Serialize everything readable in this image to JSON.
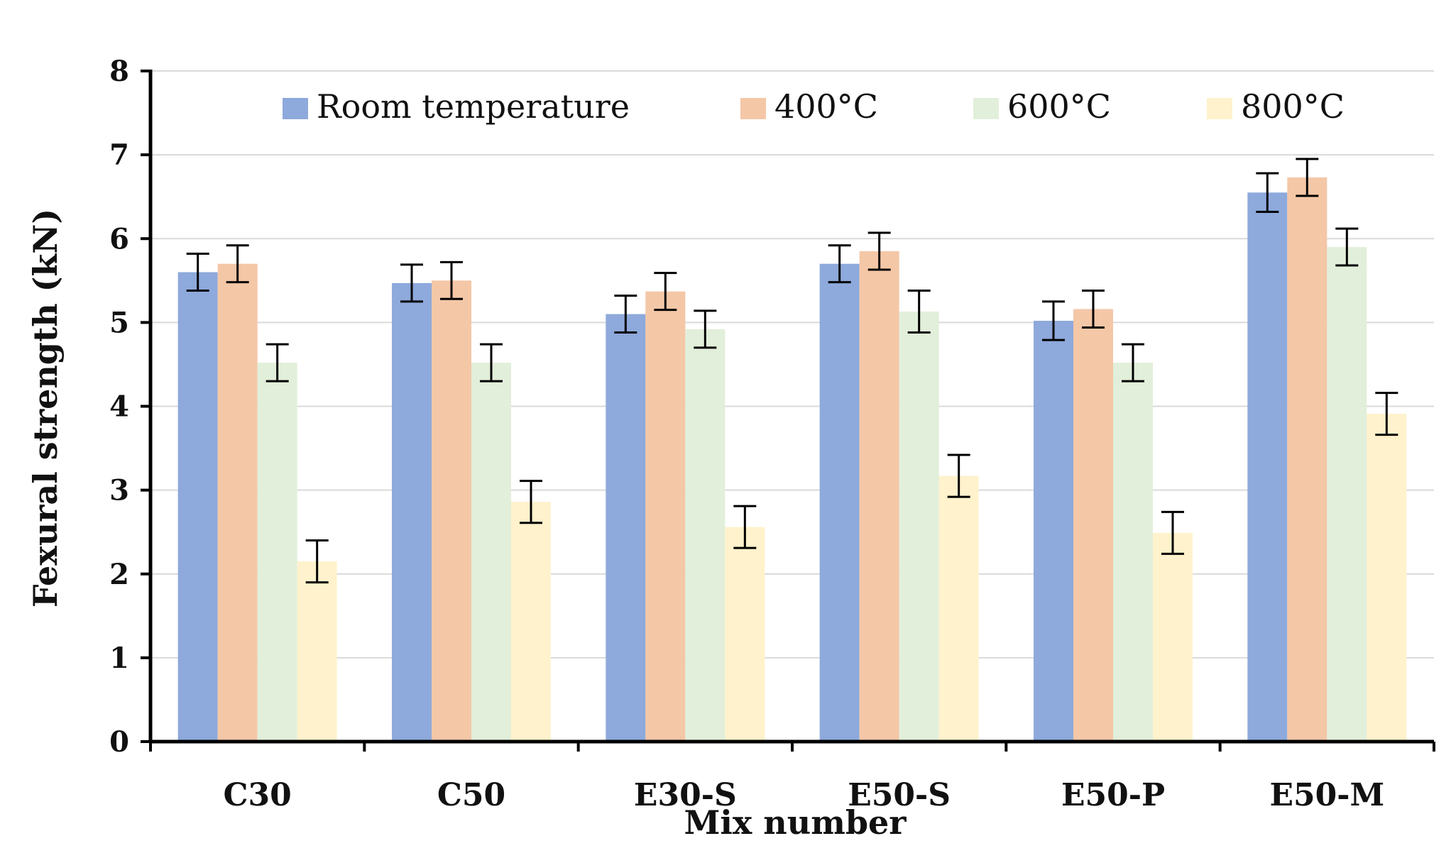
{
  "chart_data": {
    "type": "bar",
    "title": "",
    "xlabel": "Mix number",
    "ylabel": "Fexural strength (kN)",
    "ylim": [
      0,
      8
    ],
    "yticks": [
      0,
      1,
      2,
      3,
      4,
      5,
      6,
      7,
      8
    ],
    "grid": true,
    "legend_position": "top",
    "categories": [
      "C30",
      "C50",
      "E30-S",
      "E50-S",
      "E50-P",
      "E50-M"
    ],
    "series": [
      {
        "name": "Room temperature",
        "color": "#8EA9DB",
        "values": [
          5.6,
          5.47,
          5.1,
          5.7,
          5.02,
          6.55
        ],
        "errors": [
          0.22,
          0.22,
          0.22,
          0.22,
          0.23,
          0.23
        ]
      },
      {
        "name": "400°C",
        "color": "#F4C7A7",
        "values": [
          5.7,
          5.5,
          5.37,
          5.85,
          5.16,
          6.73
        ],
        "errors": [
          0.22,
          0.22,
          0.22,
          0.22,
          0.22,
          0.22
        ]
      },
      {
        "name": "600°C",
        "color": "#E2EFDA",
        "values": [
          4.52,
          4.52,
          4.92,
          5.13,
          4.52,
          5.9
        ],
        "errors": [
          0.22,
          0.22,
          0.22,
          0.25,
          0.22,
          0.22
        ]
      },
      {
        "name": "800°C",
        "color": "#FFF2CC",
        "values": [
          2.15,
          2.86,
          2.56,
          3.17,
          2.49,
          3.91
        ],
        "errors": [
          0.25,
          0.25,
          0.25,
          0.25,
          0.25,
          0.25
        ]
      }
    ]
  }
}
